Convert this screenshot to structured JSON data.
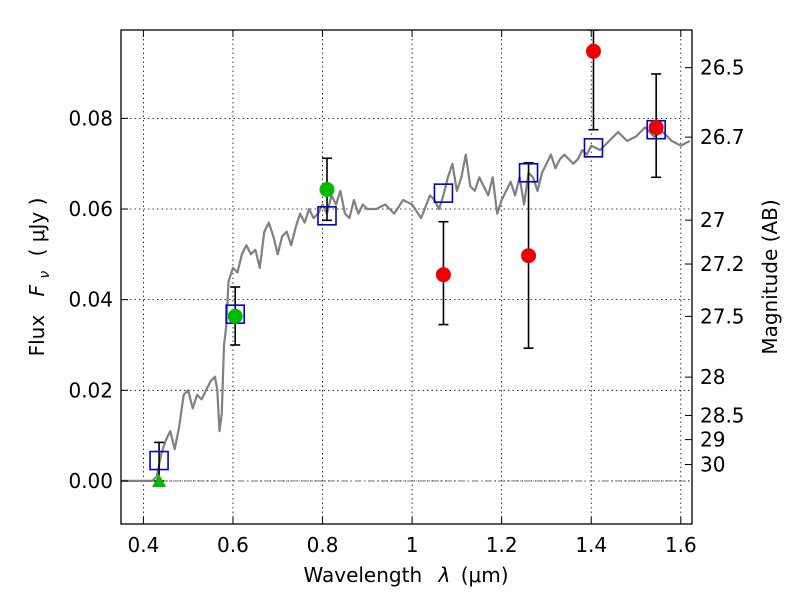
{
  "chart_data": {
    "type": "scatter",
    "x_axis": {
      "label_text": "Wavelength",
      "label_symbol": "λ",
      "label_unit": "(μm)",
      "range": [
        0.35,
        1.625
      ],
      "ticks": [
        0.4,
        0.6,
        0.8,
        1.0,
        1.2,
        1.4,
        1.6
      ],
      "tick_labels": [
        "0.4",
        "0.6",
        "0.8",
        "1",
        "1.2",
        "1.4",
        "1.6"
      ]
    },
    "y_axis": {
      "label_text": "Flux",
      "label_symbol": "F",
      "label_subscript": "ν",
      "label_unit": "( μJy )",
      "range": [
        -0.0095,
        0.0995
      ],
      "ticks": [
        0.0,
        0.02,
        0.04,
        0.06,
        0.08
      ],
      "tick_labels": [
        "0.00",
        "0.02",
        "0.04",
        "0.06",
        "0.08"
      ]
    },
    "y2_axis": {
      "label": "Magnitude (AB)",
      "ticks": [
        {
          "mag": 26.5,
          "label": "26.5"
        },
        {
          "mag": 26.7,
          "label": "26.7"
        },
        {
          "mag": 27.0,
          "label": "27"
        },
        {
          "mag": 27.2,
          "label": "27.2"
        },
        {
          "mag": 27.5,
          "label": "27.5"
        },
        {
          "mag": 28.0,
          "label": "28"
        },
        {
          "mag": 28.5,
          "label": "28.5"
        },
        {
          "mag": 29.0,
          "label": "29"
        },
        {
          "mag": 30.0,
          "label": "30"
        }
      ]
    },
    "grid": true,
    "colors": {
      "model": "#808080",
      "photometry_model": "#0000cc",
      "green": "#00bb00",
      "red": "#ee0000",
      "errorbar": "#000000"
    },
    "model_spectrum": {
      "x": [
        0.35,
        0.4,
        0.42,
        0.43,
        0.44,
        0.45,
        0.46,
        0.47,
        0.48,
        0.49,
        0.5,
        0.51,
        0.52,
        0.53,
        0.54,
        0.55,
        0.56,
        0.565,
        0.57,
        0.575,
        0.58,
        0.585,
        0.59,
        0.6,
        0.61,
        0.62,
        0.63,
        0.64,
        0.65,
        0.66,
        0.67,
        0.68,
        0.69,
        0.7,
        0.71,
        0.72,
        0.73,
        0.74,
        0.75,
        0.76,
        0.77,
        0.78,
        0.79,
        0.8,
        0.81,
        0.82,
        0.83,
        0.84,
        0.85,
        0.86,
        0.87,
        0.88,
        0.89,
        0.9,
        0.92,
        0.94,
        0.96,
        0.98,
        1.0,
        1.02,
        1.04,
        1.05,
        1.06,
        1.07,
        1.08,
        1.09,
        1.1,
        1.11,
        1.12,
        1.13,
        1.14,
        1.15,
        1.16,
        1.17,
        1.18,
        1.19,
        1.2,
        1.21,
        1.22,
        1.23,
        1.24,
        1.25,
        1.26,
        1.27,
        1.28,
        1.29,
        1.3,
        1.31,
        1.32,
        1.33,
        1.34,
        1.35,
        1.36,
        1.37,
        1.38,
        1.39,
        1.4,
        1.42,
        1.44,
        1.46,
        1.48,
        1.5,
        1.52,
        1.54,
        1.56,
        1.58,
        1.6,
        1.62
      ],
      "y": [
        0.0,
        0.0,
        0.0,
        0.001,
        0.006,
        0.009,
        0.011,
        0.007,
        0.012,
        0.019,
        0.02,
        0.016,
        0.019,
        0.018,
        0.02,
        0.022,
        0.023,
        0.02,
        0.011,
        0.015,
        0.03,
        0.034,
        0.044,
        0.047,
        0.046,
        0.05,
        0.052,
        0.05,
        0.051,
        0.047,
        0.055,
        0.057,
        0.054,
        0.05,
        0.054,
        0.055,
        0.052,
        0.056,
        0.059,
        0.057,
        0.06,
        0.058,
        0.059,
        0.061,
        0.059,
        0.063,
        0.061,
        0.064,
        0.059,
        0.058,
        0.062,
        0.059,
        0.061,
        0.06,
        0.06,
        0.061,
        0.059,
        0.062,
        0.061,
        0.058,
        0.063,
        0.062,
        0.06,
        0.063,
        0.067,
        0.07,
        0.064,
        0.067,
        0.072,
        0.065,
        0.064,
        0.067,
        0.065,
        0.063,
        0.067,
        0.059,
        0.062,
        0.064,
        0.066,
        0.063,
        0.067,
        0.061,
        0.068,
        0.067,
        0.064,
        0.068,
        0.07,
        0.072,
        0.069,
        0.071,
        0.072,
        0.071,
        0.07,
        0.071,
        0.073,
        0.072,
        0.074,
        0.073,
        0.075,
        0.077,
        0.075,
        0.076,
        0.078,
        0.076,
        0.077,
        0.075,
        0.074,
        0.075
      ]
    },
    "series": [
      {
        "marker": "open-square",
        "color": "#0000cc",
        "points": [
          [
            0.435,
            0.0045
          ],
          [
            0.605,
            0.0368
          ],
          [
            0.81,
            0.0585
          ],
          [
            1.07,
            0.0635
          ],
          [
            1.26,
            0.068
          ],
          [
            1.405,
            0.0735
          ],
          [
            1.545,
            0.0775
          ]
        ]
      },
      {
        "marker": "filled-circle",
        "color": "#00bb00",
        "points": [
          [
            0.605,
            0.0363
          ],
          [
            0.81,
            0.0643
          ]
        ]
      },
      {
        "marker": "filled-triangle",
        "color": "#00bb00",
        "points": [
          [
            0.435,
            0.0
          ]
        ]
      },
      {
        "marker": "filled-circle",
        "color": "#ee0000",
        "points": [
          [
            1.07,
            0.0455
          ],
          [
            1.26,
            0.0497
          ],
          [
            1.405,
            0.0948
          ],
          [
            1.545,
            0.078
          ]
        ]
      }
    ],
    "errorbars": [
      {
        "x": 0.435,
        "y": 0.0,
        "low": 0.0,
        "high": 0.0085
      },
      {
        "x": 0.605,
        "y": 0.0363,
        "low": 0.03,
        "high": 0.0428
      },
      {
        "x": 0.81,
        "y": 0.0643,
        "low": 0.0575,
        "high": 0.0712
      },
      {
        "x": 1.07,
        "y": 0.0455,
        "low": 0.0345,
        "high": 0.0572
      },
      {
        "x": 1.26,
        "y": 0.0497,
        "low": 0.0293,
        "high": 0.0702
      },
      {
        "x": 1.405,
        "y": 0.0948,
        "low": 0.0775,
        "high": 0.0995
      },
      {
        "x": 1.545,
        "y": 0.078,
        "low": 0.067,
        "high": 0.0898
      }
    ]
  }
}
